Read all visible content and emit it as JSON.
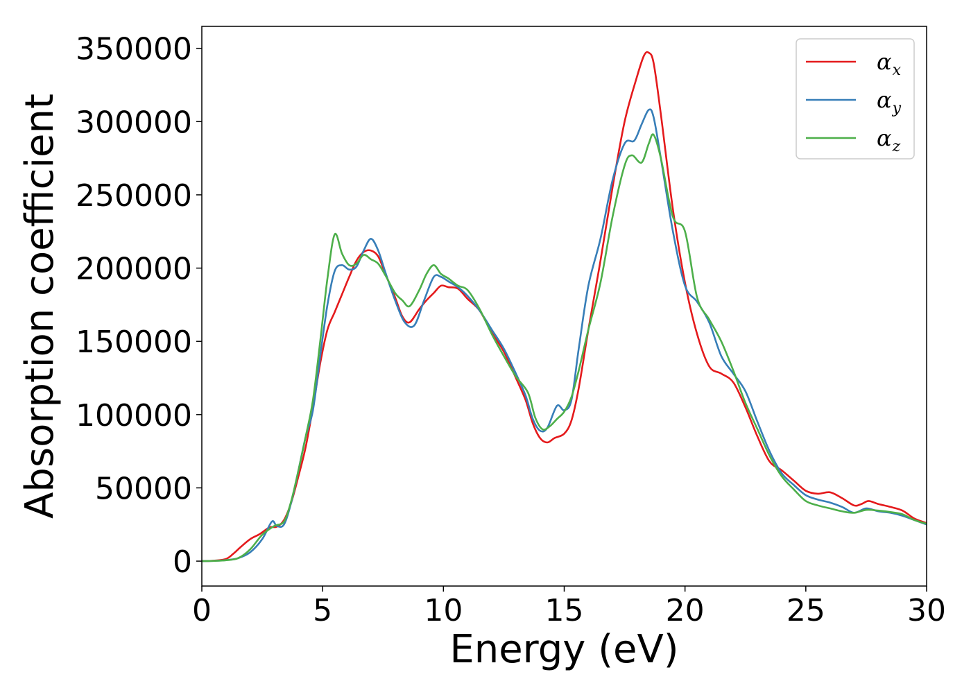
{
  "chart_data": {
    "type": "line",
    "xlabel": "Energy (eV)",
    "ylabel": "Absorption coefficient",
    "xlim": [
      0,
      30
    ],
    "ylim": [
      -17000,
      365000
    ],
    "xticks": [
      0,
      5,
      10,
      15,
      20,
      25,
      30
    ],
    "yticks": [
      0,
      50000,
      100000,
      150000,
      200000,
      250000,
      300000,
      350000
    ],
    "grid": false,
    "legend_position": "top-right",
    "series": [
      {
        "name": "αx",
        "symbol": "α",
        "subscript": "x",
        "color": "#e41a1c",
        "points": [
          [
            0,
            0
          ],
          [
            0.5,
            300
          ],
          [
            1.0,
            1500
          ],
          [
            1.3,
            5000
          ],
          [
            1.6,
            9500
          ],
          [
            2.0,
            15000
          ],
          [
            2.4,
            18500
          ],
          [
            2.8,
            23000
          ],
          [
            3.1,
            23500
          ],
          [
            3.4,
            28000
          ],
          [
            3.7,
            40000
          ],
          [
            4.0,
            58000
          ],
          [
            4.3,
            78000
          ],
          [
            4.6,
            105000
          ],
          [
            4.9,
            135000
          ],
          [
            5.2,
            158000
          ],
          [
            5.5,
            170000
          ],
          [
            5.8,
            182000
          ],
          [
            6.1,
            194000
          ],
          [
            6.4,
            205000
          ],
          [
            6.7,
            211000
          ],
          [
            7.0,
            212000
          ],
          [
            7.3,
            208000
          ],
          [
            7.6,
            196000
          ],
          [
            8.0,
            180000
          ],
          [
            8.3,
            167000
          ],
          [
            8.6,
            163000
          ],
          [
            9.0,
            172000
          ],
          [
            9.3,
            178000
          ],
          [
            9.6,
            183000
          ],
          [
            9.9,
            188000
          ],
          [
            10.2,
            187000
          ],
          [
            10.6,
            186000
          ],
          [
            11.0,
            179000
          ],
          [
            11.5,
            171000
          ],
          [
            12.0,
            156000
          ],
          [
            12.5,
            143000
          ],
          [
            13.0,
            125000
          ],
          [
            13.4,
            110000
          ],
          [
            13.7,
            94000
          ],
          [
            14.0,
            84000
          ],
          [
            14.3,
            81000
          ],
          [
            14.6,
            84000
          ],
          [
            15.0,
            87000
          ],
          [
            15.3,
            96000
          ],
          [
            15.6,
            118000
          ],
          [
            16.0,
            158000
          ],
          [
            16.5,
            205000
          ],
          [
            17.0,
            255000
          ],
          [
            17.5,
            300000
          ],
          [
            18.0,
            330000
          ],
          [
            18.3,
            345000
          ],
          [
            18.5,
            347000
          ],
          [
            18.7,
            340000
          ],
          [
            19.0,
            305000
          ],
          [
            19.5,
            240000
          ],
          [
            20.0,
            190000
          ],
          [
            20.5,
            155000
          ],
          [
            21.0,
            133000
          ],
          [
            21.5,
            128000
          ],
          [
            22.0,
            122000
          ],
          [
            22.5,
            105000
          ],
          [
            23.0,
            85000
          ],
          [
            23.5,
            68000
          ],
          [
            24.0,
            62000
          ],
          [
            24.5,
            55000
          ],
          [
            25.0,
            48000
          ],
          [
            25.5,
            46000
          ],
          [
            26.0,
            47000
          ],
          [
            26.5,
            43000
          ],
          [
            27.0,
            38000
          ],
          [
            27.3,
            39000
          ],
          [
            27.6,
            41000
          ],
          [
            28.0,
            39000
          ],
          [
            28.5,
            37000
          ],
          [
            29.0,
            34500
          ],
          [
            29.5,
            29000
          ],
          [
            30.0,
            26000
          ]
        ]
      },
      {
        "name": "αy",
        "symbol": "α",
        "subscript": "y",
        "color": "#377eb8",
        "points": [
          [
            0,
            0
          ],
          [
            0.5,
            200
          ],
          [
            1.0,
            700
          ],
          [
            1.5,
            2000
          ],
          [
            2.0,
            6000
          ],
          [
            2.5,
            15000
          ],
          [
            2.9,
            27000
          ],
          [
            3.1,
            24000
          ],
          [
            3.4,
            25000
          ],
          [
            3.7,
            40000
          ],
          [
            4.0,
            62000
          ],
          [
            4.3,
            85000
          ],
          [
            4.6,
            103000
          ],
          [
            4.9,
            140000
          ],
          [
            5.2,
            175000
          ],
          [
            5.5,
            198000
          ],
          [
            5.8,
            202000
          ],
          [
            6.1,
            199000
          ],
          [
            6.4,
            201000
          ],
          [
            6.7,
            212000
          ],
          [
            7.0,
            220000
          ],
          [
            7.3,
            212000
          ],
          [
            7.6,
            197000
          ],
          [
            8.0,
            178000
          ],
          [
            8.4,
            163000
          ],
          [
            8.8,
            161000
          ],
          [
            9.2,
            178000
          ],
          [
            9.6,
            194000
          ],
          [
            9.9,
            194000
          ],
          [
            10.2,
            191000
          ],
          [
            10.6,
            187000
          ],
          [
            11.0,
            181000
          ],
          [
            11.5,
            171000
          ],
          [
            12.0,
            158000
          ],
          [
            12.5,
            145000
          ],
          [
            13.0,
            128000
          ],
          [
            13.4,
            113000
          ],
          [
            13.7,
            97000
          ],
          [
            14.0,
            89000
          ],
          [
            14.3,
            91000
          ],
          [
            14.7,
            106000
          ],
          [
            15.0,
            103000
          ],
          [
            15.3,
            110000
          ],
          [
            15.6,
            145000
          ],
          [
            16.0,
            188000
          ],
          [
            16.5,
            220000
          ],
          [
            17.0,
            260000
          ],
          [
            17.5,
            285000
          ],
          [
            17.9,
            287000
          ],
          [
            18.2,
            298000
          ],
          [
            18.5,
            308000
          ],
          [
            18.7,
            303000
          ],
          [
            19.0,
            275000
          ],
          [
            19.5,
            225000
          ],
          [
            20.0,
            188000
          ],
          [
            20.5,
            177000
          ],
          [
            21.0,
            163000
          ],
          [
            21.5,
            140000
          ],
          [
            22.0,
            128000
          ],
          [
            22.5,
            116000
          ],
          [
            23.0,
            95000
          ],
          [
            23.5,
            75000
          ],
          [
            24.0,
            60000
          ],
          [
            24.5,
            52000
          ],
          [
            25.0,
            45000
          ],
          [
            25.5,
            42000
          ],
          [
            26.0,
            40000
          ],
          [
            26.5,
            37000
          ],
          [
            27.0,
            33000
          ],
          [
            27.5,
            36000
          ],
          [
            28.0,
            34000
          ],
          [
            28.5,
            33000
          ],
          [
            29.0,
            31000
          ],
          [
            29.5,
            28000
          ],
          [
            30.0,
            25000
          ]
        ]
      },
      {
        "name": "αz",
        "symbol": "α",
        "subscript": "z",
        "color": "#4daf4a",
        "points": [
          [
            0,
            0
          ],
          [
            0.5,
            200
          ],
          [
            1.0,
            600
          ],
          [
            1.5,
            2000
          ],
          [
            2.0,
            8000
          ],
          [
            2.5,
            18000
          ],
          [
            3.0,
            24000
          ],
          [
            3.4,
            27000
          ],
          [
            3.7,
            41000
          ],
          [
            4.0,
            62000
          ],
          [
            4.3,
            85000
          ],
          [
            4.6,
            110000
          ],
          [
            4.9,
            150000
          ],
          [
            5.2,
            193000
          ],
          [
            5.5,
            223000
          ],
          [
            5.8,
            210000
          ],
          [
            6.1,
            202000
          ],
          [
            6.4,
            203000
          ],
          [
            6.7,
            209000
          ],
          [
            7.0,
            206000
          ],
          [
            7.3,
            203000
          ],
          [
            7.6,
            195000
          ],
          [
            8.0,
            183000
          ],
          [
            8.3,
            178000
          ],
          [
            8.6,
            174000
          ],
          [
            9.0,
            185000
          ],
          [
            9.3,
            196000
          ],
          [
            9.6,
            202000
          ],
          [
            9.9,
            196000
          ],
          [
            10.2,
            193000
          ],
          [
            10.6,
            188000
          ],
          [
            11.0,
            185000
          ],
          [
            11.5,
            172000
          ],
          [
            12.0,
            155000
          ],
          [
            12.5,
            140000
          ],
          [
            13.0,
            126000
          ],
          [
            13.5,
            115000
          ],
          [
            13.8,
            98000
          ],
          [
            14.1,
            90000
          ],
          [
            14.4,
            92000
          ],
          [
            14.7,
            97000
          ],
          [
            15.0,
            102000
          ],
          [
            15.3,
            112000
          ],
          [
            15.6,
            130000
          ],
          [
            16.0,
            158000
          ],
          [
            16.5,
            190000
          ],
          [
            17.0,
            235000
          ],
          [
            17.5,
            270000
          ],
          [
            17.8,
            277000
          ],
          [
            18.2,
            272000
          ],
          [
            18.5,
            285000
          ],
          [
            18.7,
            291000
          ],
          [
            19.0,
            275000
          ],
          [
            19.5,
            235000
          ],
          [
            20.0,
            225000
          ],
          [
            20.5,
            180000
          ],
          [
            21.0,
            165000
          ],
          [
            21.5,
            150000
          ],
          [
            22.0,
            130000
          ],
          [
            22.5,
            108000
          ],
          [
            23.0,
            90000
          ],
          [
            23.5,
            72000
          ],
          [
            24.0,
            58000
          ],
          [
            24.5,
            49000
          ],
          [
            25.0,
            41000
          ],
          [
            25.5,
            38000
          ],
          [
            26.0,
            36000
          ],
          [
            26.5,
            34000
          ],
          [
            27.0,
            33000
          ],
          [
            27.5,
            35000
          ],
          [
            28.0,
            34500
          ],
          [
            28.5,
            33500
          ],
          [
            29.0,
            32000
          ],
          [
            29.5,
            28000
          ],
          [
            30.0,
            25500
          ]
        ]
      }
    ]
  }
}
